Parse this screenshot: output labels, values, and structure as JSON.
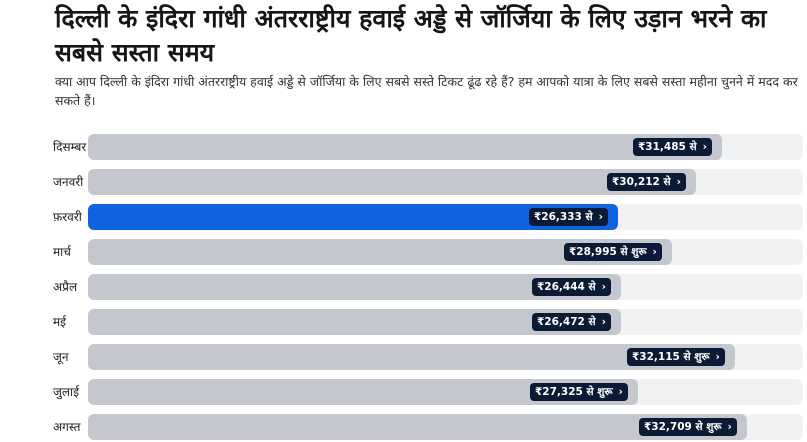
{
  "header": {
    "title": "दिल्ली के इंदिरा गांधी अंतरराष्ट्रीय हवाई अड्डे से जॉर्जिया के लिए उड़ान भरने का सबसे सस्ता समय",
    "subtitle": "क्या आप दिल्ली के इंदिरा गांधी अंतरराष्ट्रीय हवाई अड्डे से जॉर्जिया के लिए सबसे सस्ते टिकट ढूंढ रहे हैं? हम आपको यात्रा के लिए सबसे सस्ता महीना चुनने में मदद कर सकते हैं।"
  },
  "chart_data": {
    "type": "bar",
    "orientation": "horizontal",
    "currency": "₹",
    "categories": [
      "दिसम्बर",
      "जनवरी",
      "फ़रवरी",
      "मार्च",
      "अप्रैल",
      "मई",
      "जून",
      "जुलाई",
      "अगस्त"
    ],
    "values": [
      31485,
      30212,
      26333,
      28995,
      26444,
      26472,
      32115,
      27325,
      32709
    ],
    "labels": [
      "₹31,485 से",
      "₹30,212 से",
      "₹26,333 से",
      "₹28,995 से शुरू",
      "₹26,444 से",
      "₹26,472 से",
      "₹32,115 से शुरू",
      "₹27,325 से शुरू",
      "₹32,709 से शुरू"
    ],
    "selected_index": 2,
    "colors": {
      "bar": "#c4c8ce",
      "selected": "#0f62e0",
      "track": "#f1f2f4",
      "badge": "#0b1b36"
    },
    "grid": false,
    "legend": "none"
  },
  "icons": {
    "badge_arrow": "chevron-right-icon"
  }
}
